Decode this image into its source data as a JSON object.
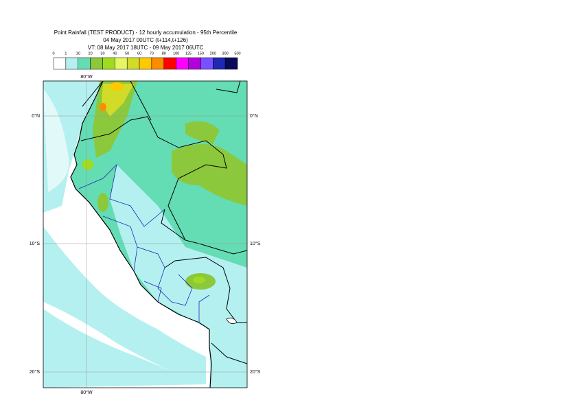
{
  "header": {
    "title": "Point Rainfall (TEST PRODUCT) - 12 hourly accumulation - 95th Percentile",
    "run": "04 May 2017 00UTC (t+114,t+126)",
    "valid": "VT: 08 May 2017 18UTC - 09 May 2017 06UTC"
  },
  "legend": {
    "levels": [
      0,
      1,
      10,
      20,
      30,
      40,
      50,
      60,
      70,
      80,
      100,
      125,
      150,
      200,
      300,
      500
    ],
    "colors": [
      "#ffffff",
      "#b4f0f0",
      "#64dcb4",
      "#8cc83c",
      "#a0dc1e",
      "#e6f564",
      "#d2dc28",
      "#ffc800",
      "#ff8c00",
      "#ff0000",
      "#ff00ff",
      "#b400dc",
      "#7850ff",
      "#1e28b4",
      "#0a0a5a"
    ]
  },
  "map": {
    "lon_labels": [
      "80°W"
    ],
    "lat_labels": [
      "0°N",
      "10°S",
      "20°S"
    ]
  }
}
